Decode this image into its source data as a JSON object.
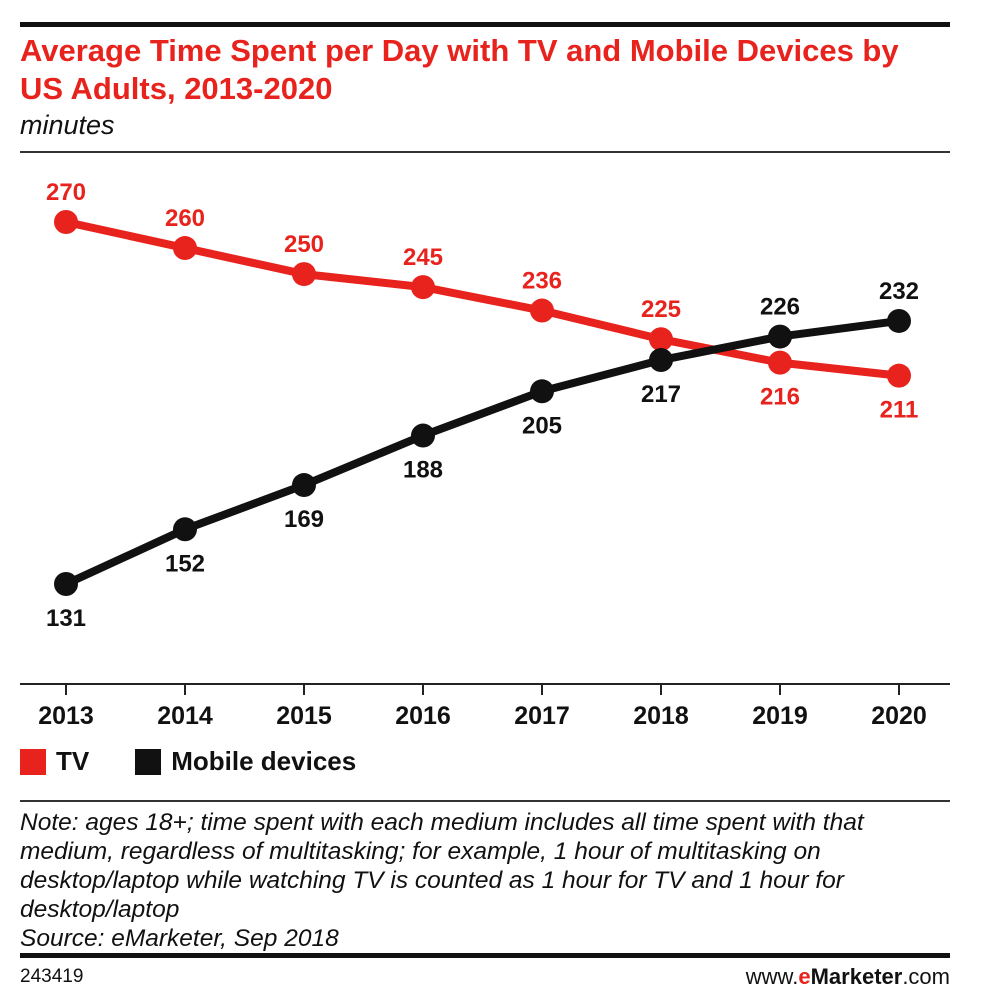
{
  "header": {
    "title": "Average Time Spent per Day with TV and Mobile Devices by US Adults, 2013-2020",
    "subtitle": "minutes"
  },
  "legend": {
    "items": [
      {
        "label": "TV",
        "color": "#e8221c"
      },
      {
        "label": "Mobile devices",
        "color": "#111111"
      }
    ]
  },
  "note": {
    "text": "Note: ages 18+; time spent with each medium includes all time spent with that medium, regardless of multitasking; for example, 1 hour of multitasking on desktop/laptop while watching TV is counted as 1 hour for TV and 1 hour for desktop/laptop",
    "source": "Source: eMarketer, Sep 2018"
  },
  "footer": {
    "chart_id": "243419",
    "site_prefix": "www.",
    "site_brand_e": "e",
    "site_brand_rest": "Marketer",
    "site_suffix": ".com"
  },
  "chart_data": {
    "type": "line",
    "title": "Average Time Spent per Day with TV and Mobile Devices by US Adults, 2013-2020",
    "ylabel": "minutes",
    "xlabel": "",
    "categories": [
      "2013",
      "2014",
      "2015",
      "2016",
      "2017",
      "2018",
      "2019",
      "2020"
    ],
    "ylim": [
      110,
      275
    ],
    "grid": false,
    "legend": "bottom-left",
    "series": [
      {
        "name": "TV",
        "color": "#e8221c",
        "values": [
          270,
          260,
          250,
          245,
          236,
          225,
          216,
          211
        ],
        "label_pos": [
          "above",
          "above",
          "above",
          "above",
          "above",
          "above",
          "below",
          "below"
        ]
      },
      {
        "name": "Mobile devices",
        "color": "#111111",
        "values": [
          131,
          152,
          169,
          188,
          205,
          217,
          226,
          232
        ],
        "label_pos": [
          "below",
          "below",
          "below",
          "below",
          "below",
          "below",
          "above",
          "above"
        ]
      }
    ]
  }
}
